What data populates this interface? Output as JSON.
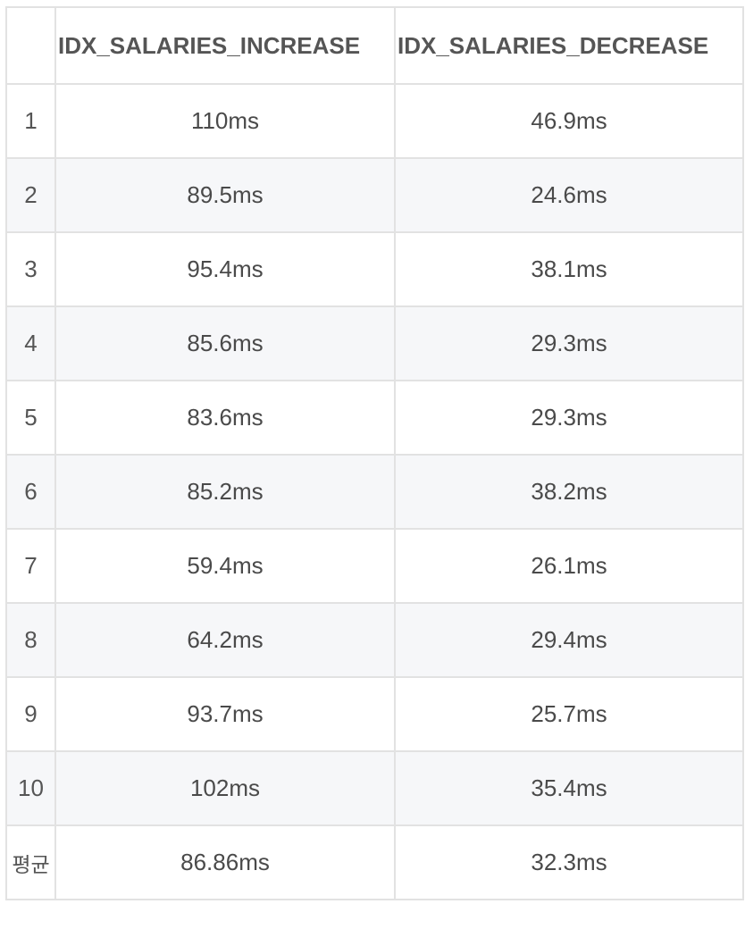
{
  "table": {
    "headers": [
      "",
      "IDX_SALARIES_INCREASE",
      "IDX_SALARIES_DECREASE"
    ],
    "rows": [
      {
        "label": "1",
        "increase": "110ms",
        "decrease": "46.9ms"
      },
      {
        "label": "2",
        "increase": "89.5ms",
        "decrease": "24.6ms"
      },
      {
        "label": "3",
        "increase": "95.4ms",
        "decrease": "38.1ms"
      },
      {
        "label": "4",
        "increase": "85.6ms",
        "decrease": "29.3ms"
      },
      {
        "label": "5",
        "increase": "83.6ms",
        "decrease": "29.3ms"
      },
      {
        "label": "6",
        "increase": "85.2ms",
        "decrease": "38.2ms"
      },
      {
        "label": "7",
        "increase": "59.4ms",
        "decrease": "26.1ms"
      },
      {
        "label": "8",
        "increase": "64.2ms",
        "decrease": "29.4ms"
      },
      {
        "label": "9",
        "increase": "93.7ms",
        "decrease": "25.7ms"
      },
      {
        "label": "10",
        "increase": "102ms",
        "decrease": "35.4ms"
      },
      {
        "label": "평균",
        "increase": "86.86ms",
        "decrease": "32.3ms"
      }
    ]
  }
}
